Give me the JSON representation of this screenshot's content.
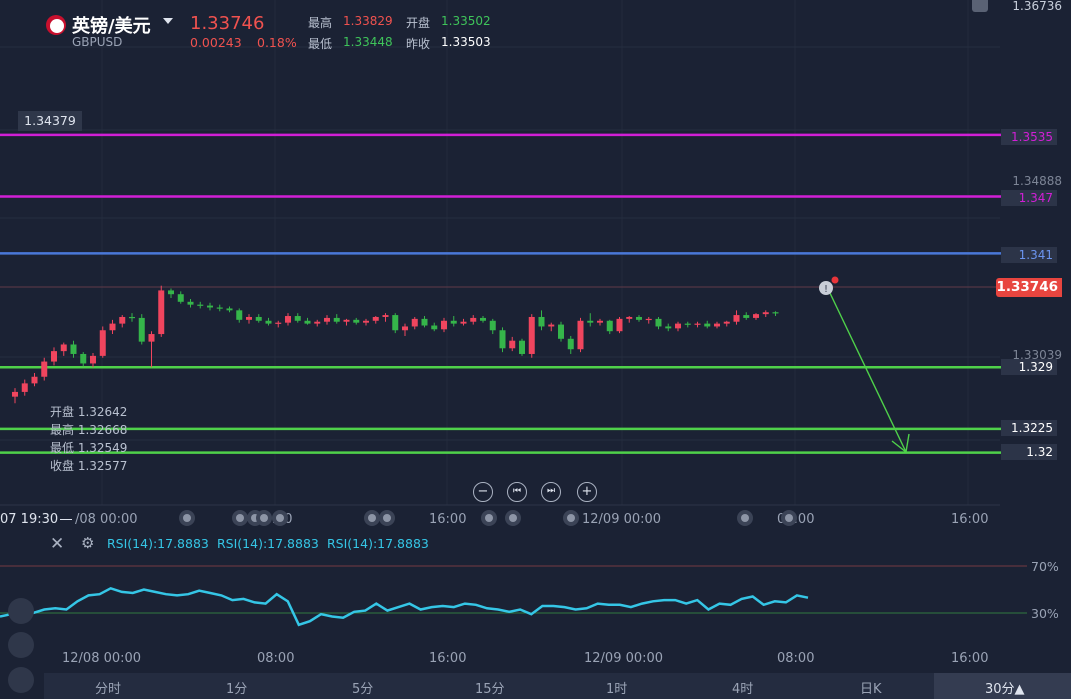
{
  "header": {
    "title": "英镑/美元",
    "symbol": "GBPUSD",
    "price": "1.33746",
    "change": "0.00243",
    "change_pct": "0.18%",
    "high_label": "最高",
    "high": "1.33829",
    "open_label": "开盘",
    "open": "1.33502",
    "low_label": "最低",
    "low": "1.33448",
    "prev_close_label": "昨收",
    "prev_close": "1.33503"
  },
  "ohlc_tooltip": {
    "open": "开盘 1.32642",
    "high": "最高 1.32668",
    "low": "最低 1.32549",
    "close": "收盘 1.32577"
  },
  "price_scale": {
    "top": "1.36736",
    "crosshair": "1.34379",
    "p1": "1.34888",
    "p2": "1.33039",
    "current": "1.33746"
  },
  "levels": [
    {
      "label": "1.3535",
      "value": 1.3535,
      "color": "#d11fd6",
      "text_color": "#d11fd6"
    },
    {
      "label": "1.347",
      "value": 1.347,
      "color": "#d11fd6",
      "text_color": "#d11fd6"
    },
    {
      "label": "1.341",
      "value": 1.341,
      "color": "#4a78d8",
      "text_color": "#6b94ee"
    },
    {
      "label": "1.329",
      "value": 1.329,
      "color": "#4fd14a",
      "text_color": "#ffffff"
    },
    {
      "label": "1.3225",
      "value": 1.3225,
      "color": "#4fd14a",
      "text_color": "#ffffff"
    },
    {
      "label": "1.32",
      "value": 1.32,
      "color": "#4fd14a",
      "text_color": "#ffffff"
    }
  ],
  "controls": {
    "zoom_out": "−",
    "prev": "⏮",
    "next": "⏭",
    "zoom_in": "+"
  },
  "time_axis": {
    "cursor": "07 19:30",
    "labels": [
      "/08 00:00",
      "08:00",
      "16:00",
      "12/09 00:00",
      "08:00",
      "16:00"
    ]
  },
  "rsi_axis": {
    "labels": [
      "12/08 00:00",
      "08:00",
      "16:00",
      "12/09 00:00",
      "08:00",
      "16:00"
    ],
    "levels": [
      "70%",
      "30%"
    ]
  },
  "rsi_labels": [
    "RSI(14):17.8883",
    "RSI(14):17.8883",
    "RSI(14):17.8883"
  ],
  "timeframes": [
    "分时",
    "1分",
    "5分",
    "15分",
    "1时",
    "4时",
    "日K",
    "30分▲"
  ],
  "colors": {
    "up": "#f0455e",
    "down": "#35b54a",
    "rsi": "#35c6e6",
    "bg": "#1b2234"
  },
  "chart_data": {
    "type": "candlestick",
    "series": [
      {
        "o": 1.3259,
        "h": 1.3268,
        "l": 1.3252,
        "c": 1.3264
      },
      {
        "o": 1.3264,
        "h": 1.3277,
        "l": 1.326,
        "c": 1.3273
      },
      {
        "o": 1.3273,
        "h": 1.3284,
        "l": 1.327,
        "c": 1.328
      },
      {
        "o": 1.328,
        "h": 1.33,
        "l": 1.3276,
        "c": 1.3296
      },
      {
        "o": 1.3296,
        "h": 1.3311,
        "l": 1.3292,
        "c": 1.3307
      },
      {
        "o": 1.3307,
        "h": 1.3316,
        "l": 1.3302,
        "c": 1.3314
      },
      {
        "o": 1.3314,
        "h": 1.3318,
        "l": 1.33,
        "c": 1.3304
      },
      {
        "o": 1.3304,
        "h": 1.3306,
        "l": 1.3291,
        "c": 1.3294
      },
      {
        "o": 1.3294,
        "h": 1.3305,
        "l": 1.329,
        "c": 1.3302
      },
      {
        "o": 1.3302,
        "h": 1.3333,
        "l": 1.33,
        "c": 1.3329
      },
      {
        "o": 1.3329,
        "h": 1.334,
        "l": 1.3325,
        "c": 1.3336
      },
      {
        "o": 1.3336,
        "h": 1.3345,
        "l": 1.3332,
        "c": 1.3343
      },
      {
        "o": 1.3343,
        "h": 1.3347,
        "l": 1.3338,
        "c": 1.3342
      },
      {
        "o": 1.3342,
        "h": 1.3346,
        "l": 1.3314,
        "c": 1.3317
      },
      {
        "o": 1.3317,
        "h": 1.3328,
        "l": 1.329,
        "c": 1.3325
      },
      {
        "o": 1.3325,
        "h": 1.3376,
        "l": 1.3322,
        "c": 1.3371
      },
      {
        "o": 1.3371,
        "h": 1.3373,
        "l": 1.3363,
        "c": 1.3367
      },
      {
        "o": 1.3367,
        "h": 1.337,
        "l": 1.3357,
        "c": 1.3359
      },
      {
        "o": 1.3359,
        "h": 1.3362,
        "l": 1.3353,
        "c": 1.3356
      },
      {
        "o": 1.3356,
        "h": 1.3359,
        "l": 1.3352,
        "c": 1.3355
      },
      {
        "o": 1.3355,
        "h": 1.3358,
        "l": 1.335,
        "c": 1.3353
      },
      {
        "o": 1.3353,
        "h": 1.3356,
        "l": 1.3349,
        "c": 1.3352
      },
      {
        "o": 1.3352,
        "h": 1.3354,
        "l": 1.3348,
        "c": 1.335
      },
      {
        "o": 1.335,
        "h": 1.3352,
        "l": 1.3337,
        "c": 1.334
      },
      {
        "o": 1.334,
        "h": 1.3346,
        "l": 1.3336,
        "c": 1.3343
      },
      {
        "o": 1.3343,
        "h": 1.3346,
        "l": 1.3337,
        "c": 1.3339
      },
      {
        "o": 1.3339,
        "h": 1.3342,
        "l": 1.3334,
        "c": 1.3336
      },
      {
        "o": 1.3336,
        "h": 1.3339,
        "l": 1.3332,
        "c": 1.3337
      },
      {
        "o": 1.3337,
        "h": 1.3347,
        "l": 1.3334,
        "c": 1.3344
      },
      {
        "o": 1.3344,
        "h": 1.3347,
        "l": 1.3337,
        "c": 1.3339
      },
      {
        "o": 1.3339,
        "h": 1.3342,
        "l": 1.3335,
        "c": 1.3336
      },
      {
        "o": 1.3336,
        "h": 1.334,
        "l": 1.3333,
        "c": 1.3338
      },
      {
        "o": 1.3338,
        "h": 1.3345,
        "l": 1.3335,
        "c": 1.3342
      },
      {
        "o": 1.3342,
        "h": 1.3346,
        "l": 1.3336,
        "c": 1.3338
      },
      {
        "o": 1.3338,
        "h": 1.3341,
        "l": 1.3334,
        "c": 1.334
      },
      {
        "o": 1.334,
        "h": 1.3342,
        "l": 1.3335,
        "c": 1.3337
      },
      {
        "o": 1.3337,
        "h": 1.3341,
        "l": 1.3334,
        "c": 1.3339
      },
      {
        "o": 1.3339,
        "h": 1.3344,
        "l": 1.3336,
        "c": 1.3343
      },
      {
        "o": 1.3343,
        "h": 1.3347,
        "l": 1.3338,
        "c": 1.3345
      },
      {
        "o": 1.3345,
        "h": 1.3347,
        "l": 1.3326,
        "c": 1.3329
      },
      {
        "o": 1.3329,
        "h": 1.3336,
        "l": 1.3323,
        "c": 1.3333
      },
      {
        "o": 1.3333,
        "h": 1.3343,
        "l": 1.333,
        "c": 1.3341
      },
      {
        "o": 1.3341,
        "h": 1.3344,
        "l": 1.3332,
        "c": 1.3334
      },
      {
        "o": 1.3334,
        "h": 1.3337,
        "l": 1.3328,
        "c": 1.333
      },
      {
        "o": 1.333,
        "h": 1.3342,
        "l": 1.3327,
        "c": 1.3339
      },
      {
        "o": 1.3339,
        "h": 1.3344,
        "l": 1.3333,
        "c": 1.3336
      },
      {
        "o": 1.3336,
        "h": 1.3341,
        "l": 1.3334,
        "c": 1.3338
      },
      {
        "o": 1.3338,
        "h": 1.3345,
        "l": 1.3335,
        "c": 1.3342
      },
      {
        "o": 1.3342,
        "h": 1.3344,
        "l": 1.3337,
        "c": 1.3339
      },
      {
        "o": 1.3339,
        "h": 1.3341,
        "l": 1.3325,
        "c": 1.3329
      },
      {
        "o": 1.3329,
        "h": 1.3332,
        "l": 1.3306,
        "c": 1.331
      },
      {
        "o": 1.331,
        "h": 1.3322,
        "l": 1.3307,
        "c": 1.3318
      },
      {
        "o": 1.3318,
        "h": 1.332,
        "l": 1.3302,
        "c": 1.3304
      },
      {
        "o": 1.3304,
        "h": 1.3346,
        "l": 1.33,
        "c": 1.3343
      },
      {
        "o": 1.3343,
        "h": 1.335,
        "l": 1.3329,
        "c": 1.3333
      },
      {
        "o": 1.3333,
        "h": 1.3337,
        "l": 1.3328,
        "c": 1.3335
      },
      {
        "o": 1.3335,
        "h": 1.3338,
        "l": 1.3317,
        "c": 1.332
      },
      {
        "o": 1.332,
        "h": 1.3323,
        "l": 1.3304,
        "c": 1.3309
      },
      {
        "o": 1.3309,
        "h": 1.3342,
        "l": 1.3306,
        "c": 1.3339
      },
      {
        "o": 1.3339,
        "h": 1.3347,
        "l": 1.3333,
        "c": 1.3337
      },
      {
        "o": 1.3337,
        "h": 1.3341,
        "l": 1.3334,
        "c": 1.3339
      },
      {
        "o": 1.3339,
        "h": 1.334,
        "l": 1.3325,
        "c": 1.3328
      },
      {
        "o": 1.3328,
        "h": 1.3343,
        "l": 1.3326,
        "c": 1.3341
      },
      {
        "o": 1.3341,
        "h": 1.3344,
        "l": 1.3337,
        "c": 1.3343
      },
      {
        "o": 1.3343,
        "h": 1.3345,
        "l": 1.3338,
        "c": 1.334
      },
      {
        "o": 1.334,
        "h": 1.3343,
        "l": 1.3336,
        "c": 1.3341
      },
      {
        "o": 1.3341,
        "h": 1.3343,
        "l": 1.333,
        "c": 1.3333
      },
      {
        "o": 1.3333,
        "h": 1.3336,
        "l": 1.3328,
        "c": 1.3331
      },
      {
        "o": 1.3331,
        "h": 1.3338,
        "l": 1.3328,
        "c": 1.3336
      },
      {
        "o": 1.3336,
        "h": 1.3338,
        "l": 1.3332,
        "c": 1.3335
      },
      {
        "o": 1.3335,
        "h": 1.3338,
        "l": 1.3332,
        "c": 1.3336
      },
      {
        "o": 1.3336,
        "h": 1.3339,
        "l": 1.3331,
        "c": 1.3333
      },
      {
        "o": 1.3333,
        "h": 1.3338,
        "l": 1.3331,
        "c": 1.3336
      },
      {
        "o": 1.3336,
        "h": 1.3339,
        "l": 1.3333,
        "c": 1.3338
      },
      {
        "o": 1.3338,
        "h": 1.335,
        "l": 1.3335,
        "c": 1.3345
      },
      {
        "o": 1.3345,
        "h": 1.3348,
        "l": 1.334,
        "c": 1.3342
      },
      {
        "o": 1.3342,
        "h": 1.3347,
        "l": 1.334,
        "c": 1.3346
      },
      {
        "o": 1.3346,
        "h": 1.335,
        "l": 1.3343,
        "c": 1.3348
      },
      {
        "o": 1.3348,
        "h": 1.3349,
        "l": 1.3344,
        "c": 1.3347
      }
    ],
    "rsi": [
      27,
      29,
      31,
      30,
      33,
      34,
      33,
      40,
      45,
      46,
      51,
      48,
      47,
      50,
      48,
      46,
      45,
      46,
      49,
      47,
      45,
      41,
      42,
      39,
      38,
      46,
      40,
      20,
      23,
      29,
      27,
      26,
      31,
      32,
      38,
      32,
      35,
      38,
      33,
      35,
      36,
      35,
      38,
      37,
      34,
      33,
      31,
      33,
      29,
      36,
      36,
      35,
      33,
      34,
      38,
      37,
      37,
      35,
      38,
      40,
      41,
      41,
      38,
      41,
      33,
      38,
      37,
      42,
      44,
      37,
      40,
      39,
      45,
      43
    ]
  }
}
